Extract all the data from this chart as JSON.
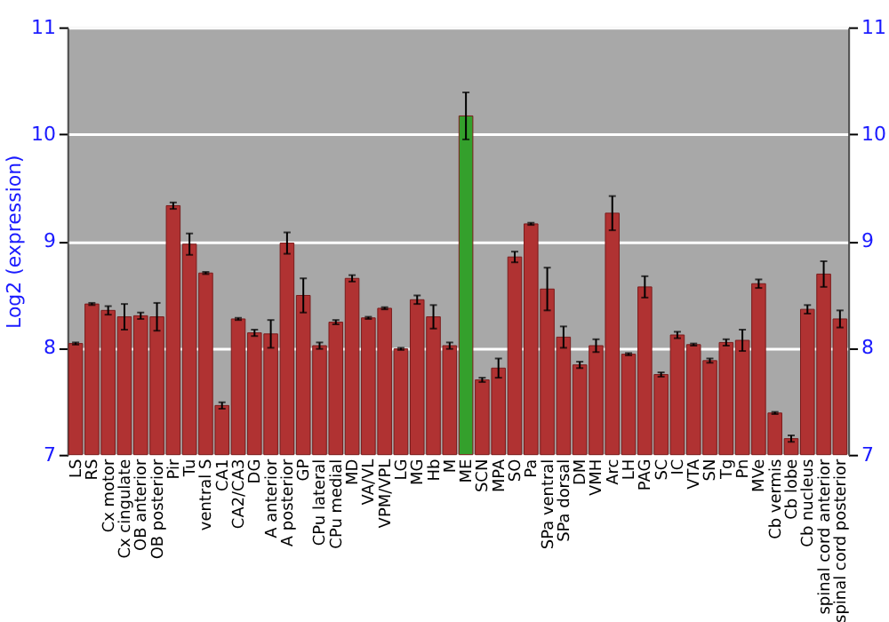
{
  "chart_data": {
    "type": "bar",
    "ylabel": "Log2 (expression)",
    "categories": [
      "LS",
      "RS",
      "Cx motor",
      "Cx cingulate",
      "OB anterior",
      "OB posterior",
      "Pir",
      "Tu",
      "ventral S",
      "CA1",
      "CA2/CA3",
      "DG",
      "A anterior",
      "A posterior",
      "GP",
      "CPu lateral",
      "CPu medial",
      "MD",
      "VA/VL",
      "VPM/VPL",
      "LG",
      "MG",
      "Hb",
      "M",
      "ME",
      "SCN",
      "MPA",
      "SO",
      "Pa",
      "SPa ventral",
      "SPa dorsal",
      "DM",
      "VMH",
      "Arc",
      "LH",
      "PAG",
      "SC",
      "IC",
      "VTA",
      "SN",
      "Tg",
      "Pn",
      "MVe",
      "Cb vermis",
      "Cb lobe",
      "Cb nucleus",
      "spinal cord anterior",
      "spinal cord posterior"
    ],
    "values": [
      8.04,
      8.41,
      8.35,
      8.29,
      8.3,
      8.29,
      9.33,
      8.97,
      8.7,
      7.46,
      8.27,
      8.14,
      8.13,
      8.98,
      8.49,
      8.02,
      8.24,
      8.65,
      8.28,
      8.37,
      7.99,
      8.45,
      8.29,
      8.02,
      10.17,
      7.7,
      7.81,
      8.85,
      9.16,
      8.55,
      8.1,
      7.84,
      8.02,
      9.26,
      7.94,
      8.57,
      7.75,
      8.12,
      8.03,
      7.88,
      8.05,
      8.07,
      8.6,
      7.39,
      7.15,
      8.36,
      8.69,
      8.27
    ],
    "errors": [
      0.01,
      0.01,
      0.04,
      0.12,
      0.03,
      0.13,
      0.03,
      0.1,
      0.01,
      0.03,
      0.01,
      0.03,
      0.13,
      0.1,
      0.16,
      0.03,
      0.02,
      0.03,
      0.01,
      0.01,
      0.01,
      0.04,
      0.11,
      0.03,
      0.22,
      0.02,
      0.09,
      0.05,
      0.01,
      0.2,
      0.1,
      0.03,
      0.06,
      0.16,
      0.01,
      0.1,
      0.02,
      0.03,
      0.01,
      0.02,
      0.03,
      0.1,
      0.04,
      0.01,
      0.03,
      0.04,
      0.12,
      0.08
    ],
    "colors": [
      "#b03232",
      "#b03232",
      "#b03232",
      "#b03232",
      "#b03232",
      "#b03232",
      "#b03232",
      "#b03232",
      "#b03232",
      "#b03232",
      "#b03232",
      "#b03232",
      "#b03232",
      "#b03232",
      "#b03232",
      "#b03232",
      "#b03232",
      "#b03232",
      "#b03232",
      "#b03232",
      "#b03232",
      "#b03232",
      "#b03232",
      "#b03232",
      "#34a02c",
      "#b03232",
      "#b03232",
      "#b03232",
      "#b03232",
      "#b03232",
      "#b03232",
      "#b03232",
      "#b03232",
      "#b03232",
      "#b03232",
      "#b03232",
      "#b03232",
      "#b03232",
      "#b03232",
      "#b03232",
      "#b03232",
      "#b03232",
      "#b03232",
      "#b03232",
      "#b03232",
      "#b03232",
      "#b03232",
      "#b03232"
    ],
    "ylim": [
      7,
      11
    ],
    "yticks": [
      7,
      8,
      9,
      10,
      11
    ],
    "y2lim": [
      7,
      11
    ],
    "y2ticks": [
      7,
      8,
      9,
      10,
      11
    ],
    "grid": "y"
  }
}
